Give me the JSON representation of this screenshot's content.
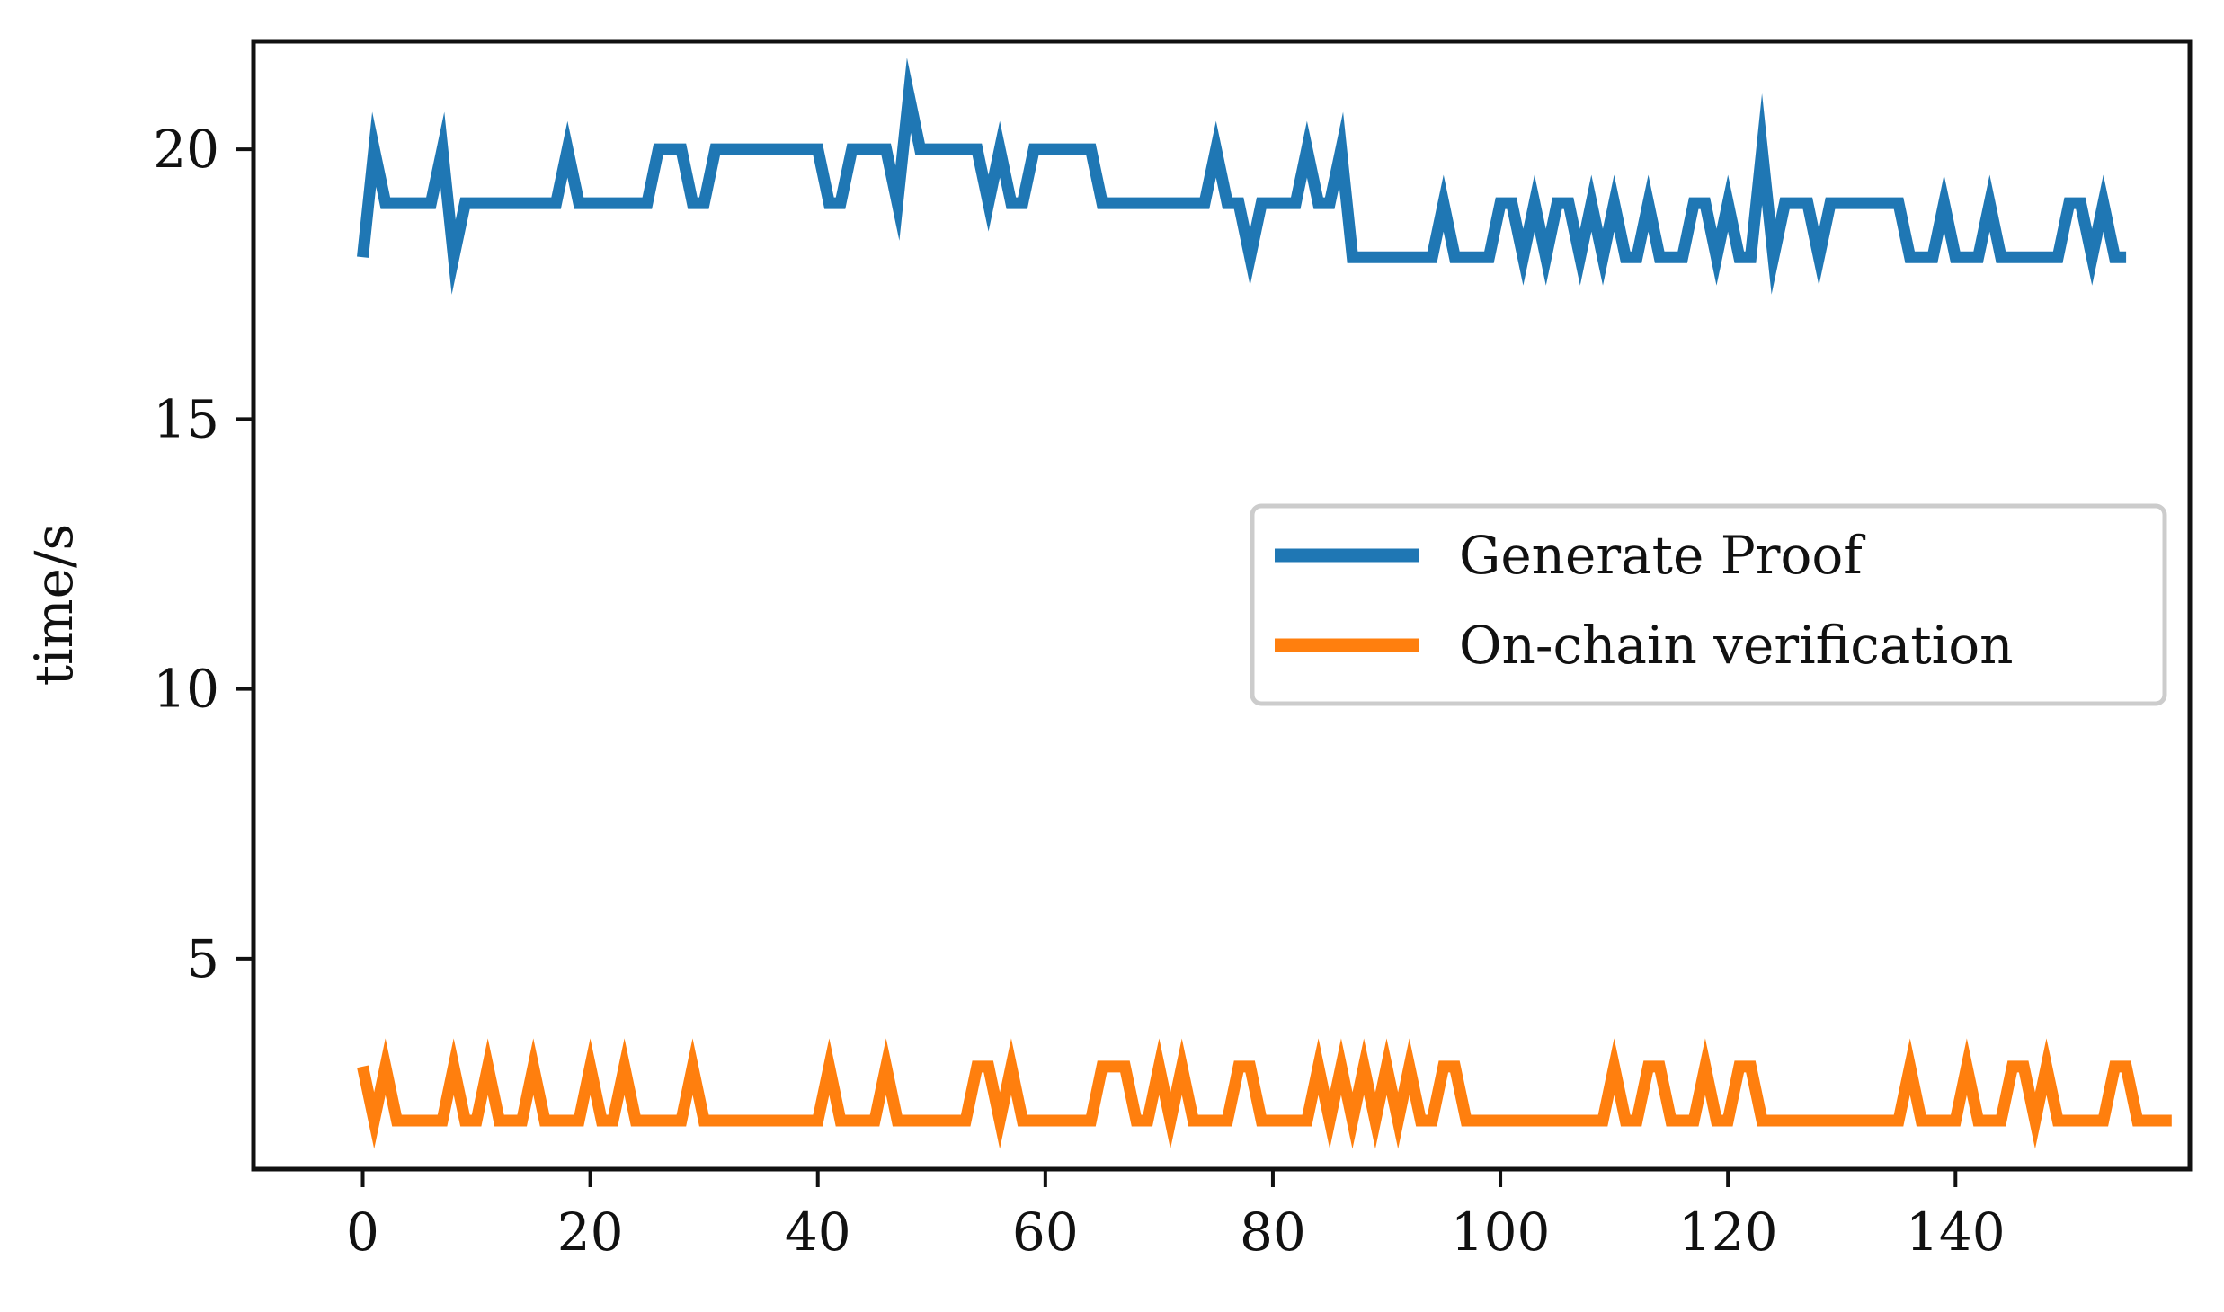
{
  "chart_data": {
    "type": "line",
    "title": "",
    "xlabel": "",
    "ylabel": "time/s",
    "xlim": [
      -9.6,
      160.6
    ],
    "ylim": [
      1.1,
      22.0
    ],
    "xticks": [
      0,
      20,
      40,
      60,
      80,
      100,
      120,
      140
    ],
    "yticks": [
      5,
      10,
      15,
      20
    ],
    "grid": false,
    "legend_position": "center-right",
    "series": [
      {
        "name": "Generate Proof",
        "color": "#1f77b4",
        "x_start": 0,
        "values": [
          18,
          20,
          19,
          19,
          19,
          19,
          19,
          20,
          18,
          19,
          19,
          19,
          19,
          19,
          19,
          19,
          19,
          19,
          20,
          19,
          19,
          19,
          19,
          19,
          19,
          19,
          20,
          20,
          20,
          19,
          19,
          20,
          20,
          20,
          20,
          20,
          20,
          20,
          20,
          20,
          20,
          19,
          19,
          20,
          20,
          20,
          20,
          19,
          21,
          20,
          20,
          20,
          20,
          20,
          20,
          19,
          20,
          19,
          19,
          20,
          20,
          20,
          20,
          20,
          20,
          19,
          19,
          19,
          19,
          19,
          19,
          19,
          19,
          19,
          19,
          20,
          19,
          19,
          18,
          19,
          19,
          19,
          19,
          20,
          19,
          19,
          20,
          18,
          18,
          18,
          18,
          18,
          18,
          18,
          18,
          19,
          18,
          18,
          18,
          18,
          19,
          19,
          18,
          19,
          18,
          19,
          19,
          18,
          19,
          18,
          19,
          18,
          18,
          19,
          18,
          18,
          18,
          19,
          19,
          18,
          19,
          18,
          18,
          20,
          18,
          19,
          19,
          19,
          18,
          19,
          19,
          19,
          19,
          19,
          19,
          19,
          18,
          18,
          18,
          19,
          18,
          18,
          18,
          19,
          18,
          18,
          18,
          18,
          18,
          18,
          19,
          19,
          18,
          19,
          18,
          18
        ]
      },
      {
        "name": "On-chain verification",
        "color": "#ff7f0e",
        "x_start": 0,
        "values": [
          3,
          2,
          3,
          2,
          2,
          2,
          2,
          2,
          3,
          2,
          2,
          3,
          2,
          2,
          2,
          3,
          2,
          2,
          2,
          2,
          3,
          2,
          2,
          3,
          2,
          2,
          2,
          2,
          2,
          3,
          2,
          2,
          2,
          2,
          2,
          2,
          2,
          2,
          2,
          2,
          2,
          3,
          2,
          2,
          2,
          2,
          3,
          2,
          2,
          2,
          2,
          2,
          2,
          2,
          3,
          3,
          2,
          3,
          2,
          2,
          2,
          2,
          2,
          2,
          2,
          3,
          3,
          3,
          2,
          2,
          3,
          2,
          3,
          2,
          2,
          2,
          2,
          3,
          3,
          2,
          2,
          2,
          2,
          2,
          3,
          2,
          3,
          2,
          3,
          2,
          3,
          2,
          3,
          2,
          2,
          3,
          3,
          2,
          2,
          2,
          2,
          2,
          2,
          2,
          2,
          2,
          2,
          2,
          2,
          2,
          3,
          2,
          2,
          3,
          3,
          2,
          2,
          2,
          3,
          2,
          2,
          3,
          3,
          2,
          2,
          2,
          2,
          2,
          2,
          2,
          2,
          2,
          2,
          2,
          2,
          2,
          3,
          2,
          2,
          2,
          2,
          3,
          2,
          2,
          2,
          3,
          3,
          2,
          3,
          2,
          2,
          2,
          2,
          2,
          3,
          3,
          2,
          2,
          2,
          2
        ]
      }
    ]
  }
}
